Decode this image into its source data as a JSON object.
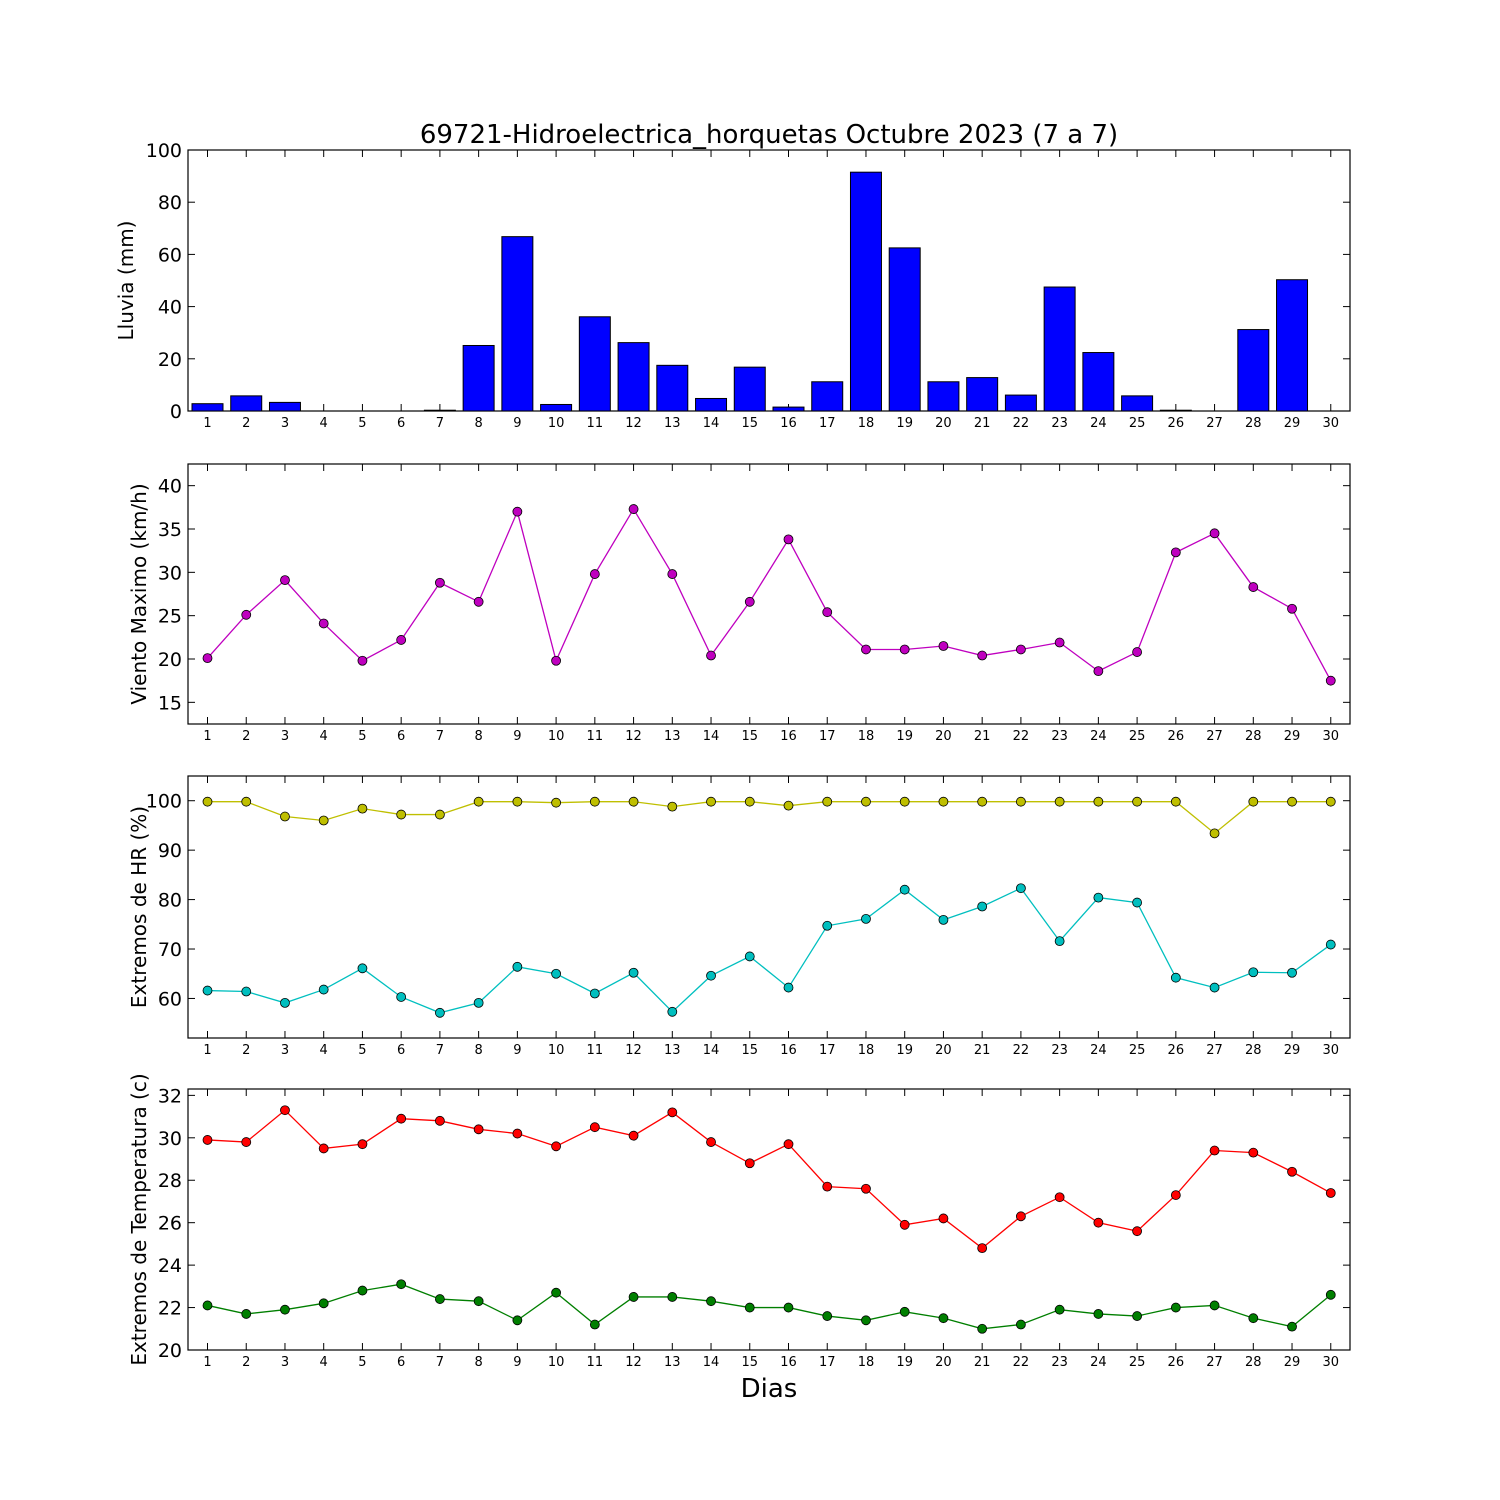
{
  "figure": {
    "title": "69721-Hidroelectrica_horquetas Octubre 2023  (7 a 7)",
    "xlabel": "Dias"
  },
  "chart_data": [
    {
      "type": "bar",
      "ylabel": "Lluvia (mm)",
      "categories": [
        "1",
        "2",
        "3",
        "4",
        "5",
        "6",
        "7",
        "8",
        "9",
        "10",
        "11",
        "12",
        "13",
        "14",
        "15",
        "16",
        "17",
        "18",
        "19",
        "20",
        "21",
        "22",
        "23",
        "24",
        "25",
        "26",
        "27",
        "28",
        "29",
        "30"
      ],
      "ylim": [
        0,
        100
      ],
      "yticks": [
        0,
        20,
        40,
        60,
        80,
        100
      ],
      "series": [
        {
          "color": "#0000ff",
          "values": [
            2.8,
            5.8,
            3.3,
            0,
            0,
            0,
            0.3,
            25.1,
            66.8,
            2.5,
            36.1,
            26.2,
            17.5,
            4.8,
            16.8,
            1.5,
            11.2,
            91.5,
            62.5,
            11.2,
            12.8,
            6.1,
            47.5,
            22.4,
            5.8,
            0.3,
            0,
            31.2,
            50.3,
            0
          ]
        }
      ]
    },
    {
      "type": "line",
      "ylabel": "Viento Maximo (km/h)",
      "x": [
        1,
        2,
        3,
        4,
        5,
        6,
        7,
        8,
        9,
        10,
        11,
        12,
        13,
        14,
        15,
        16,
        17,
        18,
        19,
        20,
        21,
        22,
        23,
        24,
        25,
        26,
        27,
        28,
        29,
        30
      ],
      "ylim": [
        12.5,
        42.5
      ],
      "yticks": [
        15,
        20,
        25,
        30,
        35,
        40
      ],
      "series": [
        {
          "color": "#bf00bf",
          "values": [
            20.1,
            25.1,
            29.1,
            24.1,
            19.8,
            22.2,
            28.8,
            26.6,
            37.0,
            19.8,
            29.8,
            37.3,
            29.8,
            20.4,
            26.6,
            33.8,
            25.4,
            21.1,
            21.1,
            21.5,
            20.4,
            21.1,
            21.9,
            18.6,
            20.8,
            32.3,
            34.5,
            28.3,
            25.8,
            17.5
          ]
        }
      ]
    },
    {
      "type": "line",
      "ylabel": "Extremos de HR (%)",
      "x": [
        1,
        2,
        3,
        4,
        5,
        6,
        7,
        8,
        9,
        10,
        11,
        12,
        13,
        14,
        15,
        16,
        17,
        18,
        19,
        20,
        21,
        22,
        23,
        24,
        25,
        26,
        27,
        28,
        29,
        30
      ],
      "ylim": [
        52,
        105
      ],
      "yticks": [
        60,
        70,
        80,
        90,
        100
      ],
      "series": [
        {
          "color": "#bfbf00",
          "values": [
            99.8,
            99.8,
            96.8,
            96.0,
            98.4,
            97.2,
            97.2,
            99.8,
            99.8,
            99.6,
            99.8,
            99.8,
            98.8,
            99.8,
            99.8,
            99.0,
            99.8,
            99.8,
            99.8,
            99.8,
            99.8,
            99.8,
            99.8,
            99.8,
            99.8,
            99.8,
            93.4,
            99.8,
            99.8,
            99.8
          ]
        },
        {
          "color": "#00bfbf",
          "values": [
            61.6,
            61.4,
            59.1,
            61.8,
            66.1,
            60.3,
            57.1,
            59.1,
            66.4,
            65.0,
            61.0,
            65.2,
            57.3,
            64.6,
            68.5,
            62.2,
            74.7,
            76.1,
            82.0,
            75.9,
            78.6,
            82.3,
            71.6,
            80.4,
            79.4,
            64.2,
            62.2,
            65.3,
            65.2,
            70.9
          ]
        }
      ]
    },
    {
      "type": "line",
      "ylabel": "Extremos de Temperatura (c)",
      "x": [
        1,
        2,
        3,
        4,
        5,
        6,
        7,
        8,
        9,
        10,
        11,
        12,
        13,
        14,
        15,
        16,
        17,
        18,
        19,
        20,
        21,
        22,
        23,
        24,
        25,
        26,
        27,
        28,
        29,
        30
      ],
      "ylim": [
        20,
        32.3
      ],
      "yticks": [
        20,
        22,
        24,
        26,
        28,
        30,
        32
      ],
      "series": [
        {
          "color": "#ff0000",
          "values": [
            29.9,
            29.8,
            31.3,
            29.5,
            29.7,
            30.9,
            30.8,
            30.4,
            30.2,
            29.6,
            30.5,
            30.1,
            31.2,
            29.8,
            28.8,
            29.7,
            27.7,
            27.6,
            25.9,
            26.2,
            24.8,
            26.3,
            27.2,
            26.0,
            25.6,
            27.3,
            29.4,
            29.3,
            28.4,
            27.4
          ]
        },
        {
          "color": "#007f00",
          "values": [
            22.1,
            21.7,
            21.9,
            22.2,
            22.8,
            23.1,
            22.4,
            22.3,
            21.4,
            22.7,
            21.2,
            22.5,
            22.5,
            22.3,
            22.0,
            22.0,
            21.6,
            21.4,
            21.8,
            21.5,
            21.0,
            21.2,
            21.9,
            21.7,
            21.6,
            22.0,
            22.1,
            21.5,
            21.1,
            22.6
          ]
        }
      ]
    }
  ]
}
